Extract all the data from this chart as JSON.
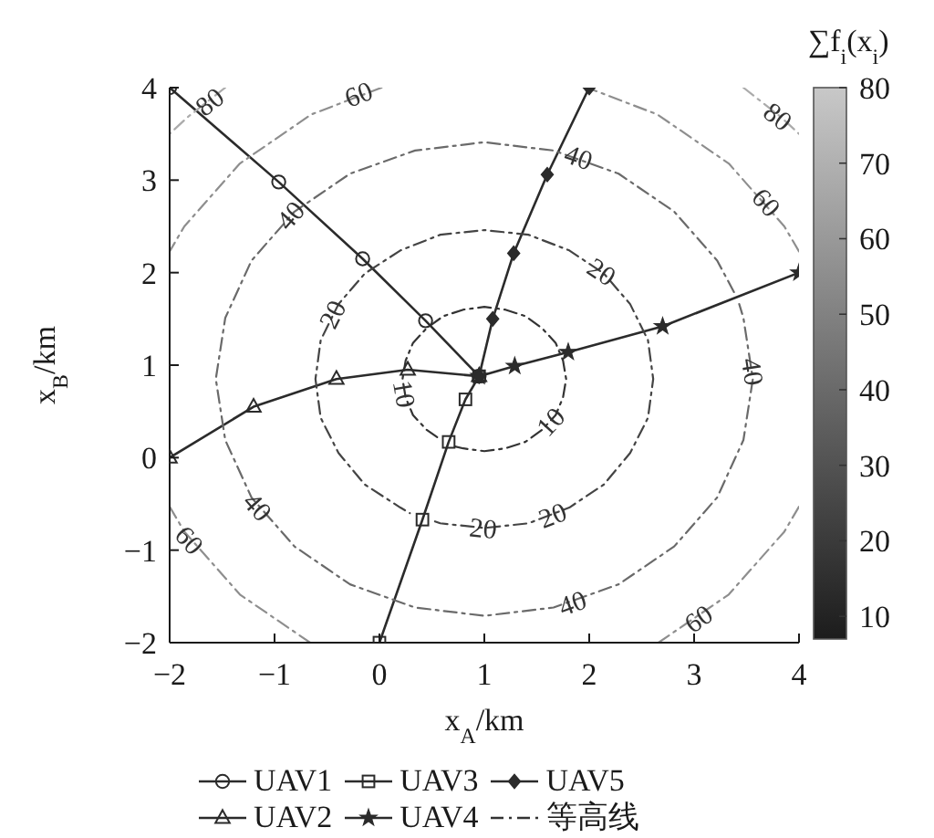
{
  "chart_data": {
    "type": "line",
    "xlabel": "x$_{A}$/km",
    "ylabel": "x$_{B}$/km",
    "clabel": "∑f$_{i}$(x$_{i}$)",
    "clim": [
      7,
      80
    ],
    "cticks": [
      10,
      20,
      30,
      40,
      50,
      60,
      70,
      80
    ],
    "xlim": [
      -2,
      4
    ],
    "xticks": [
      {
        "value": -2,
        "label": "−2"
      },
      {
        "value": -1,
        "label": "−1"
      },
      0,
      1,
      2,
      3,
      4
    ],
    "ylim": [
      -2,
      4
    ],
    "yticks": [
      {
        "value": -2,
        "label": "−2"
      },
      {
        "value": -1,
        "label": "−1"
      },
      0,
      1,
      2,
      3,
      4
    ],
    "legend": "bottom",
    "series": [
      {
        "name": "UAV1",
        "color": "#2b2b2b",
        "marker": "circle",
        "line_style": "solid",
        "x": [
          -2,
          -0.96,
          -0.16,
          0.44,
          0.95
        ],
        "values": [
          4,
          2.98,
          2.15,
          1.48,
          0.88
        ]
      },
      {
        "name": "UAV2",
        "color": "#2b2b2b",
        "marker": "triangle",
        "line_style": "solid",
        "x": [
          -2,
          -1.2,
          -0.41,
          0.27,
          0.95
        ],
        "values": [
          0,
          0.55,
          0.85,
          0.95,
          0.88
        ]
      },
      {
        "name": "UAV3",
        "color": "#2b2b2b",
        "marker": "square",
        "line_style": "solid",
        "x": [
          0,
          0.41,
          0.66,
          0.82,
          0.95
        ],
        "values": [
          -2,
          -0.67,
          0.17,
          0.63,
          0.88
        ]
      },
      {
        "name": "UAV4",
        "color": "#2b2b2b",
        "marker": "star",
        "line_style": "solid",
        "x": [
          4,
          2.7,
          1.8,
          1.29,
          0.95
        ],
        "values": [
          2,
          1.42,
          1.14,
          0.99,
          0.88
        ]
      },
      {
        "name": "UAV5",
        "color": "#2b2b2b",
        "marker": "diamond",
        "line_style": "solid",
        "x": [
          2,
          1.6,
          1.28,
          1.08,
          0.95
        ],
        "values": [
          4,
          3.06,
          2.21,
          1.5,
          0.88
        ]
      },
      {
        "name": "等高线",
        "color": "#333333",
        "marker": "none",
        "line_style": "dashdot",
        "x": [
          0.72,
          0.8,
          1,
          1.2,
          1.39,
          1.55,
          1.68,
          1.75,
          1.78,
          1.75,
          1.68,
          1.55,
          1.39,
          1.2,
          1,
          0.8,
          0.61,
          0.45,
          0.32,
          0.25,
          0.22,
          0.25,
          0.32,
          0.45,
          0.59
        ],
        "values": [
          0.12,
          0.1,
          0.07,
          0.1,
          0.17,
          0.3,
          0.46,
          0.65,
          0.85,
          1.05,
          1.24,
          1.4,
          1.53,
          1.6,
          1.63,
          1.6,
          1.53,
          1.4,
          1.24,
          1.05,
          0.85,
          0.65,
          0.46,
          0.3,
          0.19
        ]
      },
      {
        "color": "#444444",
        "marker": "none",
        "line_style": "dashdot",
        "x": [
          0.53,
          0.58,
          1,
          1.42,
          1.81,
          2.14,
          2.39,
          2.56,
          2.61,
          2.56,
          2.39,
          2.14,
          1.81,
          1.42,
          1,
          0.58,
          0.2,
          -0.14,
          -0.39,
          -0.56,
          -0.61,
          -0.56,
          -0.39,
          -0.14,
          0.2,
          0.29
        ],
        "values": [
          -0.69,
          -0.71,
          -0.76,
          -0.71,
          -0.54,
          -0.29,
          0.05,
          0.43,
          0.85,
          1.27,
          1.66,
          1.99,
          2.24,
          2.41,
          2.46,
          2.41,
          2.24,
          1.99,
          1.66,
          1.27,
          0.85,
          0.43,
          0.05,
          -0.29,
          -0.54,
          -0.6
        ]
      },
      {
        "color": "#6a6a6a",
        "marker": "none",
        "line_style": "dashdot",
        "x": [
          3.38,
          3.22,
          2.81,
          2.28,
          1.66,
          1,
          0.34,
          -0.28,
          -0.81,
          -1.22,
          -1.47,
          -1.56,
          -1.47,
          -1.22,
          -0.81,
          -0.28,
          0.34,
          1,
          1.66,
          2.28,
          2.81,
          3.22,
          3.47,
          3.56,
          3.47,
          3.43
        ],
        "values": [
          1.79,
          2.13,
          2.66,
          3.07,
          3.32,
          3.41,
          3.32,
          3.07,
          2.66,
          2.13,
          1.51,
          0.85,
          0.19,
          -0.43,
          -0.96,
          -1.37,
          -1.62,
          -1.71,
          -1.62,
          -1.37,
          -0.96,
          -0.43,
          0.19,
          0.85,
          1.51,
          1.66
        ]
      },
      {
        "color": "#8e8e8e",
        "marker": "none",
        "line_style": "dashdot",
        "x": [
          4,
          3.86,
          3.33,
          2.65,
          1.98
        ],
        "values": [
          2.23,
          2.5,
          3.18,
          3.71,
          4
        ]
      },
      {
        "color": "#8e8e8e",
        "marker": "none",
        "line_style": "dashdot",
        "x": [
          0.02,
          -0.65,
          -1.33,
          -1.86,
          -2
        ],
        "values": [
          4,
          3.71,
          3.18,
          2.5,
          2.23
        ]
      },
      {
        "color": "#8e8e8e",
        "marker": "none",
        "line_style": "dashdot",
        "x": [
          -2,
          -1.86,
          -1.33,
          -0.66
        ],
        "values": [
          -0.53,
          -0.8,
          -1.48,
          -2
        ]
      },
      {
        "color": "#8e8e8e",
        "marker": "none",
        "line_style": "dashdot",
        "x": [
          2.66,
          3.33,
          3.86,
          4
        ],
        "values": [
          -2,
          -1.48,
          -0.8,
          -0.53
        ]
      },
      {
        "color": "#ababab",
        "marker": "none",
        "line_style": "dashdot",
        "x": [
          3.47,
          3.83,
          4
        ],
        "values": [
          4,
          3.68,
          3.5
        ]
      },
      {
        "color": "#ababab",
        "marker": "none",
        "line_style": "dashdot",
        "x": [
          -1.47,
          -1.83,
          -2
        ],
        "values": [
          4,
          3.68,
          3.5
        ]
      }
    ],
    "annotations": [
      {
        "text": "80",
        "x": -1.62,
        "y": 3.85
      },
      {
        "text": "60",
        "x": -0.2,
        "y": 3.93
      },
      {
        "text": "40",
        "x": -0.85,
        "y": 2.62
      },
      {
        "text": "20",
        "x": -0.45,
        "y": 1.55
      },
      {
        "text": "10",
        "x": 0.24,
        "y": 0.69
      },
      {
        "text": "40",
        "x": 1.9,
        "y": 3.25
      },
      {
        "text": "20",
        "x": 2.12,
        "y": 2.01
      },
      {
        "text": "80",
        "x": 3.8,
        "y": 3.69
      },
      {
        "text": "60",
        "x": 3.69,
        "y": 2.76
      },
      {
        "text": "40",
        "x": 3.56,
        "y": 0.93
      },
      {
        "text": "10",
        "x": 1.63,
        "y": 0.39
      },
      {
        "text": "20",
        "x": 1.65,
        "y": -0.62
      },
      {
        "text": "20",
        "x": 0.99,
        "y": -0.76
      },
      {
        "text": "40",
        "x": 1.84,
        "y": -1.57
      },
      {
        "text": "60",
        "x": 3.04,
        "y": -1.74
      },
      {
        "text": "40",
        "x": -1.16,
        "y": -0.53
      },
      {
        "text": "60",
        "x": -1.81,
        "y": -0.89
      }
    ]
  }
}
